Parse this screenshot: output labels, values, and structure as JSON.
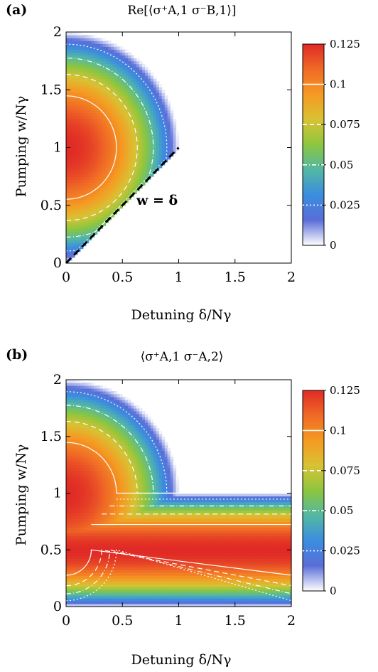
{
  "figure": {
    "colorbar_min": 0,
    "colorbar_max": 0.125,
    "colormap_stops": [
      "#ffffff",
      "#5a6ed8",
      "#3b8ddf",
      "#52b8a4",
      "#8cc63f",
      "#d8c234",
      "#f59a22",
      "#f06a26",
      "#e02a26"
    ]
  },
  "chart_data": [
    {
      "type": "heatmap",
      "panel_label": "(a)",
      "title": "Re[⟨σ⁺A,1 σ⁻B,1⟩]",
      "xlabel": "Detuning δ/Nγ",
      "ylabel": "Pumping w/Nγ",
      "xlim": [
        0,
        2
      ],
      "ylim": [
        0,
        2
      ],
      "x_ticks": [
        "0",
        "0.5",
        "1",
        "1.5",
        "2"
      ],
      "y_ticks": [
        "0",
        "0.5",
        "1",
        "1.5",
        "2"
      ],
      "annotation": "w = δ",
      "annotation_line": {
        "from": [
          0,
          0
        ],
        "to": [
          1,
          1
        ],
        "style": "dashed"
      },
      "peak": {
        "x": 0,
        "y": 1,
        "value": 0.125
      },
      "domain": "δ ≤ w and δ² + (w-1)² ≤ 1",
      "contour_levels": [
        {
          "value": 0.1,
          "style": "solid"
        },
        {
          "value": 0.075,
          "style": "dashed"
        },
        {
          "value": 0.05,
          "style": "dash-dot"
        },
        {
          "value": 0.025,
          "style": "dotted"
        }
      ],
      "colorbar": {
        "ticks": [
          "0",
          "0.025",
          "0.05",
          "0.075",
          "0.1",
          "0.125"
        ]
      }
    },
    {
      "type": "heatmap",
      "panel_label": "(b)",
      "title": "⟨σ⁺A,1 σ⁻A,2⟩",
      "xlabel": "Detuning δ/Nγ",
      "ylabel": "Pumping w/Nγ",
      "xlim": [
        0,
        2
      ],
      "ylim": [
        0,
        2
      ],
      "x_ticks": [
        "0",
        "0.5",
        "1",
        "1.5",
        "2"
      ],
      "y_ticks": [
        "0",
        "0.5",
        "1",
        "1.5",
        "2"
      ],
      "plateau_value": 0.125,
      "domain": "w ≤ 1, or δ² + (w-1)² ≤ 1",
      "contour_levels": [
        {
          "value": 0.1,
          "style": "solid"
        },
        {
          "value": 0.075,
          "style": "dashed"
        },
        {
          "value": 0.05,
          "style": "dash-dot"
        },
        {
          "value": 0.025,
          "style": "dotted"
        }
      ],
      "colorbar": {
        "ticks": [
          "0",
          "0.025",
          "0.05",
          "0.075",
          "0.1",
          "0.125"
        ]
      }
    }
  ]
}
